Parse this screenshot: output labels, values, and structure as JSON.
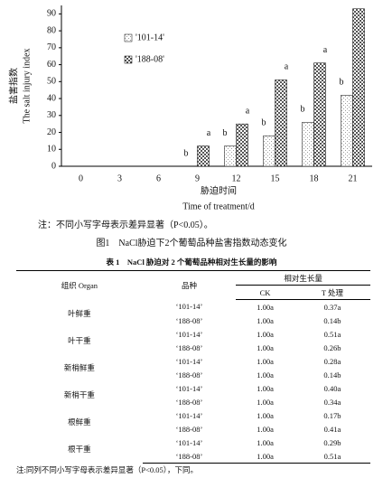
{
  "chart_data": {
    "type": "bar",
    "y_label_cn": "盐害指数",
    "y_label_en": "The salt injury index",
    "x_label_cn": "胁迫时间",
    "x_label_en": "Time of treatment/d",
    "categories": [
      "0",
      "3",
      "6",
      "9",
      "12",
      "15",
      "18",
      "21"
    ],
    "series": [
      {
        "name": "'101-14'",
        "color": "#9a9a9a",
        "values": [
          0,
          0,
          0,
          0,
          12,
          18,
          26,
          42
        ],
        "value_labels": [
          null,
          null,
          null,
          "b",
          "b",
          "b",
          "b",
          "b"
        ]
      },
      {
        "name": "'188-08'",
        "color": "#555555",
        "values": [
          0,
          0,
          0,
          12,
          25,
          51,
          61,
          93
        ],
        "value_labels": [
          null,
          null,
          null,
          "a",
          "a",
          "a",
          "a",
          "a"
        ]
      }
    ],
    "ylim": [
      0,
      95
    ],
    "yticks": [
      0,
      10,
      20,
      30,
      40,
      50,
      60,
      70,
      80,
      90
    ],
    "legend": "upper left"
  },
  "note": "注：不同小写字母表示差异显著（P<0.05）。",
  "figure_caption": "图1　NaCl胁迫下2个葡萄品种盐害指数动态变化",
  "table": {
    "title": "表 1　NaCl 胁迫对 2 个葡萄品种相对生长量的影响",
    "header": {
      "organ": "组织 Organ",
      "variety": "品种",
      "group": "相对生长量",
      "ck": "CK",
      "t": "T 处理"
    },
    "groups": [
      {
        "organ": "叶鲜重",
        "rows": [
          [
            "‘101-14’",
            "1.00a",
            "0.37a"
          ],
          [
            "‘188-08’",
            "1.00a",
            "0.14b"
          ]
        ]
      },
      {
        "organ": "叶干重",
        "rows": [
          [
            "‘101-14’",
            "1.00a",
            "0.51a"
          ],
          [
            "‘188-08’",
            "1.00a",
            "0.26b"
          ]
        ]
      },
      {
        "organ": "新梢鲜重",
        "rows": [
          [
            "‘101-14’",
            "1.00a",
            "0.28a"
          ],
          [
            "‘188-08’",
            "1.00a",
            "0.14b"
          ]
        ]
      },
      {
        "organ": "新梢干重",
        "rows": [
          [
            "‘101-14’",
            "1.00a",
            "0.40a"
          ],
          [
            "‘188-08’",
            "1.00a",
            "0.34a"
          ]
        ]
      },
      {
        "organ": "根鲜重",
        "rows": [
          [
            "‘101-14’",
            "1.00a",
            "0.17b"
          ],
          [
            "‘188-08’",
            "1.00a",
            "0.41a"
          ]
        ]
      },
      {
        "organ": "根干重",
        "rows": [
          [
            "‘101-14’",
            "1.00a",
            "0.29b"
          ],
          [
            "‘188-08’",
            "1.00a",
            "0.51a"
          ]
        ]
      }
    ],
    "note": "注:同列不同小写字母表示差异显著（P<0.05），下同。"
  }
}
